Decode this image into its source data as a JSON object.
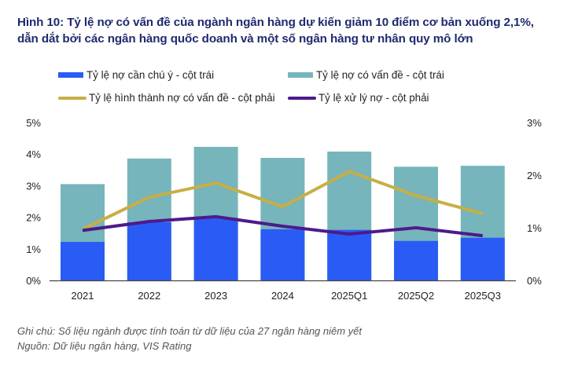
{
  "title_lines": [
    "Hình 10: Tỷ lệ nợ có vấn đề của ngành ngân hàng dự kiến giảm 10 điểm cơ bản xuống 2,1%,",
    "dẫn dắt bởi các ngân hàng quốc doanh và một số ngân hàng tư nhân quy mô lớn"
  ],
  "chart_data": {
    "type": "bar",
    "title": "Hình 10: Tỷ lệ nợ có vấn đề của ngành ngân hàng dự kiến giảm 10 điểm cơ bản xuống 2,1%, dẫn dắt bởi các ngân hàng quốc doanh và một số ngân hàng tư nhân quy mô lớn",
    "categories": [
      "2021",
      "2022",
      "2023",
      "2024",
      "2025Q1",
      "2025Q2",
      "2025Q3"
    ],
    "left_axis": {
      "ticks": [
        "0%",
        "1%",
        "2%",
        "3%",
        "4%",
        "5%"
      ],
      "range": [
        0,
        5
      ]
    },
    "right_axis": {
      "ticks": [
        "0%",
        "1%",
        "2%",
        "3%"
      ],
      "range": [
        0,
        3
      ]
    },
    "grid": false,
    "legend_position": "top",
    "bar_series": [
      {
        "name": "Tỷ lệ nợ cần chú ý - cột trái",
        "axis": "left",
        "color": "#2a5cf5",
        "values": [
          1.22,
          1.84,
          1.98,
          1.62,
          1.6,
          1.25,
          1.35
        ]
      },
      {
        "name": "Tỷ lệ nợ có vấn đề - cột trái",
        "axis": "left",
        "color": "#76b5bb",
        "values": [
          3.05,
          3.86,
          4.23,
          3.88,
          4.08,
          3.6,
          3.63
        ]
      }
    ],
    "line_series": [
      {
        "name": "Tỷ lệ hình thành nợ có vấn đề - cột phải",
        "axis": "right",
        "color": "#c8ae45",
        "values": [
          0.97,
          1.58,
          1.85,
          1.4,
          2.07,
          1.61,
          1.27
        ]
      },
      {
        "name": "Tỷ lệ xử lý nợ - cột phải",
        "axis": "right",
        "color": "#4e1a8c",
        "values": [
          0.95,
          1.12,
          1.21,
          1.03,
          0.88,
          1.0,
          0.85
        ]
      }
    ],
    "xlabel": "",
    "ylabel": ""
  },
  "footer": {
    "note": "Ghi chú: Số liệu ngành được tính toán từ dữ liệu của 27 ngân hàng niêm yết",
    "source": "Nguồn: Dữ liệu ngân hàng, VIS Rating"
  }
}
